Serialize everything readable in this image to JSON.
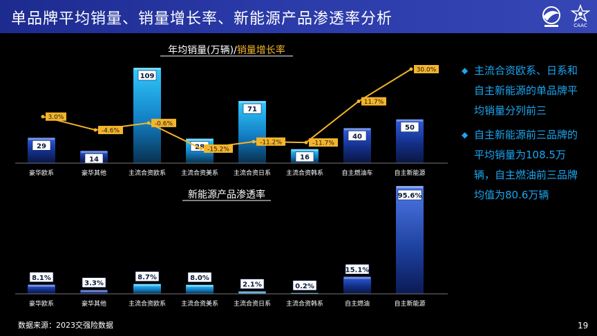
{
  "header": {
    "title": "单品牌平均销量、销量增长率、新能源产品渗透率分析",
    "logo_text": "CAAC"
  },
  "colors": {
    "header_bg": "#2a3aa8",
    "line": "#f5b52a",
    "accent_text": "#1ba6f2",
    "bar_dark": "#1a3aa6",
    "bar_light": "#1fb3ec"
  },
  "chart_data": [
    {
      "type": "bar+line",
      "title_part1": "年均销量(万辆)/",
      "title_part2": "销量增长率",
      "categories": [
        "豪华欧系",
        "豪华其他",
        "主流合资欧系",
        "主流合资美系",
        "主流合资日系",
        "主流合资韩系",
        "自主燃油车",
        "自主新能源"
      ],
      "series": [
        {
          "name": "年均销量(万辆)",
          "values": [
            29,
            14,
            109,
            28,
            71,
            16,
            40,
            50
          ],
          "labels": [
            "29",
            "14",
            "109",
            "28",
            "71",
            "16",
            "40",
            "50"
          ]
        },
        {
          "name": "销量增长率",
          "values": [
            3.0,
            -4.6,
            -0.6,
            -15.2,
            -11.2,
            -11.7,
            11.7,
            30.0
          ],
          "labels": [
            "3.0%",
            "-4.6%",
            "-0.6%",
            "-15.2%",
            "-11.2%",
            "-11.7%",
            "11.7%",
            "30.0%"
          ]
        }
      ],
      "bar_ylim": [
        0,
        109
      ],
      "line_ylim": [
        -15.2,
        30.0
      ]
    },
    {
      "type": "bar",
      "title": "新能源产品渗透率",
      "categories": [
        "豪华欧系",
        "豪华其他",
        "主流合资欧系",
        "主流合资美系",
        "主流合资日系",
        "主流合资韩系",
        "自主燃油",
        "自主新能源"
      ],
      "values": [
        8.1,
        3.3,
        8.7,
        8.0,
        2.1,
        0.2,
        15.1,
        95.6
      ],
      "labels": [
        "8.1%",
        "3.3%",
        "8.7%",
        "8.0%",
        "2.1%",
        "0.2%",
        "15.1%",
        "95.6%"
      ],
      "ylim": [
        0,
        95.6
      ]
    }
  ],
  "bullets": [
    {
      "text": "主流合资欧系、日系和自主新能源的单品牌平均销量分列前三"
    },
    {
      "text": "自主新能源前三品牌的平均销量为108.5万辆，自主燃油前三品牌均值为80.6万辆"
    }
  ],
  "footer": {
    "source": "数据来源：2023交强险数据",
    "page_number": "19"
  }
}
